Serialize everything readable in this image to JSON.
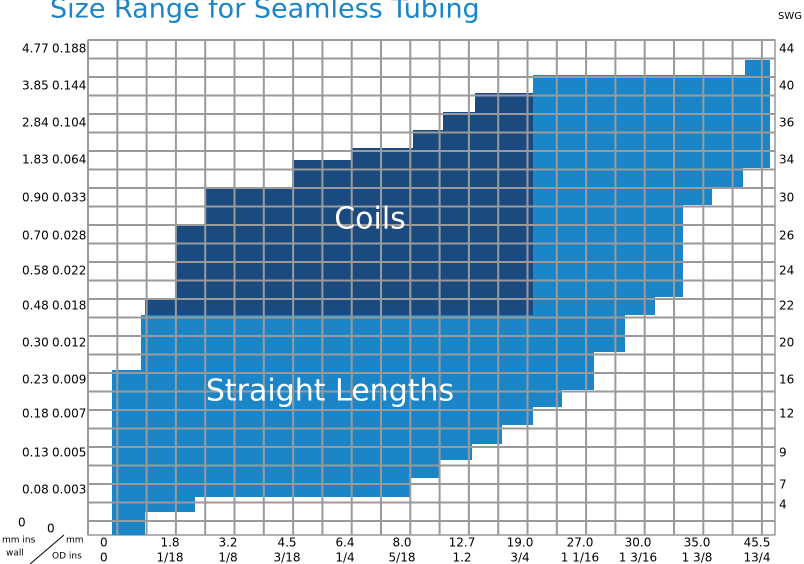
{
  "title": "Size Range for Seamless Tubing",
  "swg_title": "SWG",
  "regions": {
    "coils": "Coils",
    "straight": "Straight Lengths"
  },
  "wall": [
    {
      "mm": "4.77",
      "ins": "0.188"
    },
    {
      "mm": "3.85",
      "ins": "0.144"
    },
    {
      "mm": "2.84",
      "ins": "0.104"
    },
    {
      "mm": "1.83",
      "ins": "0.064"
    },
    {
      "mm": "0.90",
      "ins": "0.033"
    },
    {
      "mm": "0.70",
      "ins": "0.028"
    },
    {
      "mm": "0.58",
      "ins": "0.022"
    },
    {
      "mm": "0.48",
      "ins": "0.018"
    },
    {
      "mm": "0.30",
      "ins": "0.012"
    },
    {
      "mm": "0.23",
      "ins": "0.009"
    },
    {
      "mm": "0.18",
      "ins": "0.007"
    },
    {
      "mm": "0.13",
      "ins": "0.005"
    },
    {
      "mm": "0.08",
      "ins": "0.003"
    },
    {
      "mm": "0",
      "ins": "0"
    }
  ],
  "swg": [
    "44",
    "40",
    "36",
    "34",
    "30",
    "26",
    "24",
    "22",
    "20",
    "16",
    "12",
    "9",
    "7",
    "4"
  ],
  "od": [
    {
      "mm": "0",
      "ins": "0"
    },
    {
      "mm": "1.8",
      "ins": "1/18"
    },
    {
      "mm": "3.2",
      "ins": "1/8"
    },
    {
      "mm": "4.5",
      "ins": "3/18"
    },
    {
      "mm": "6.4",
      "ins": "1/4"
    },
    {
      "mm": "8.0",
      "ins": "5/18"
    },
    {
      "mm": "12.7",
      "ins": "1.2"
    },
    {
      "mm": "19.0",
      "ins": "3/4"
    },
    {
      "mm": "27.0",
      "ins": "1 1/16"
    },
    {
      "mm": "30.0",
      "ins": "1 3/16"
    },
    {
      "mm": "35.0",
      "ins": "1 3/8"
    },
    {
      "mm": "45.5",
      "ins": "13/4"
    }
  ],
  "corner": {
    "wall_units": "mm ins",
    "wall": "wall",
    "od_mm": "mm",
    "od_units": "OD ins"
  }
}
